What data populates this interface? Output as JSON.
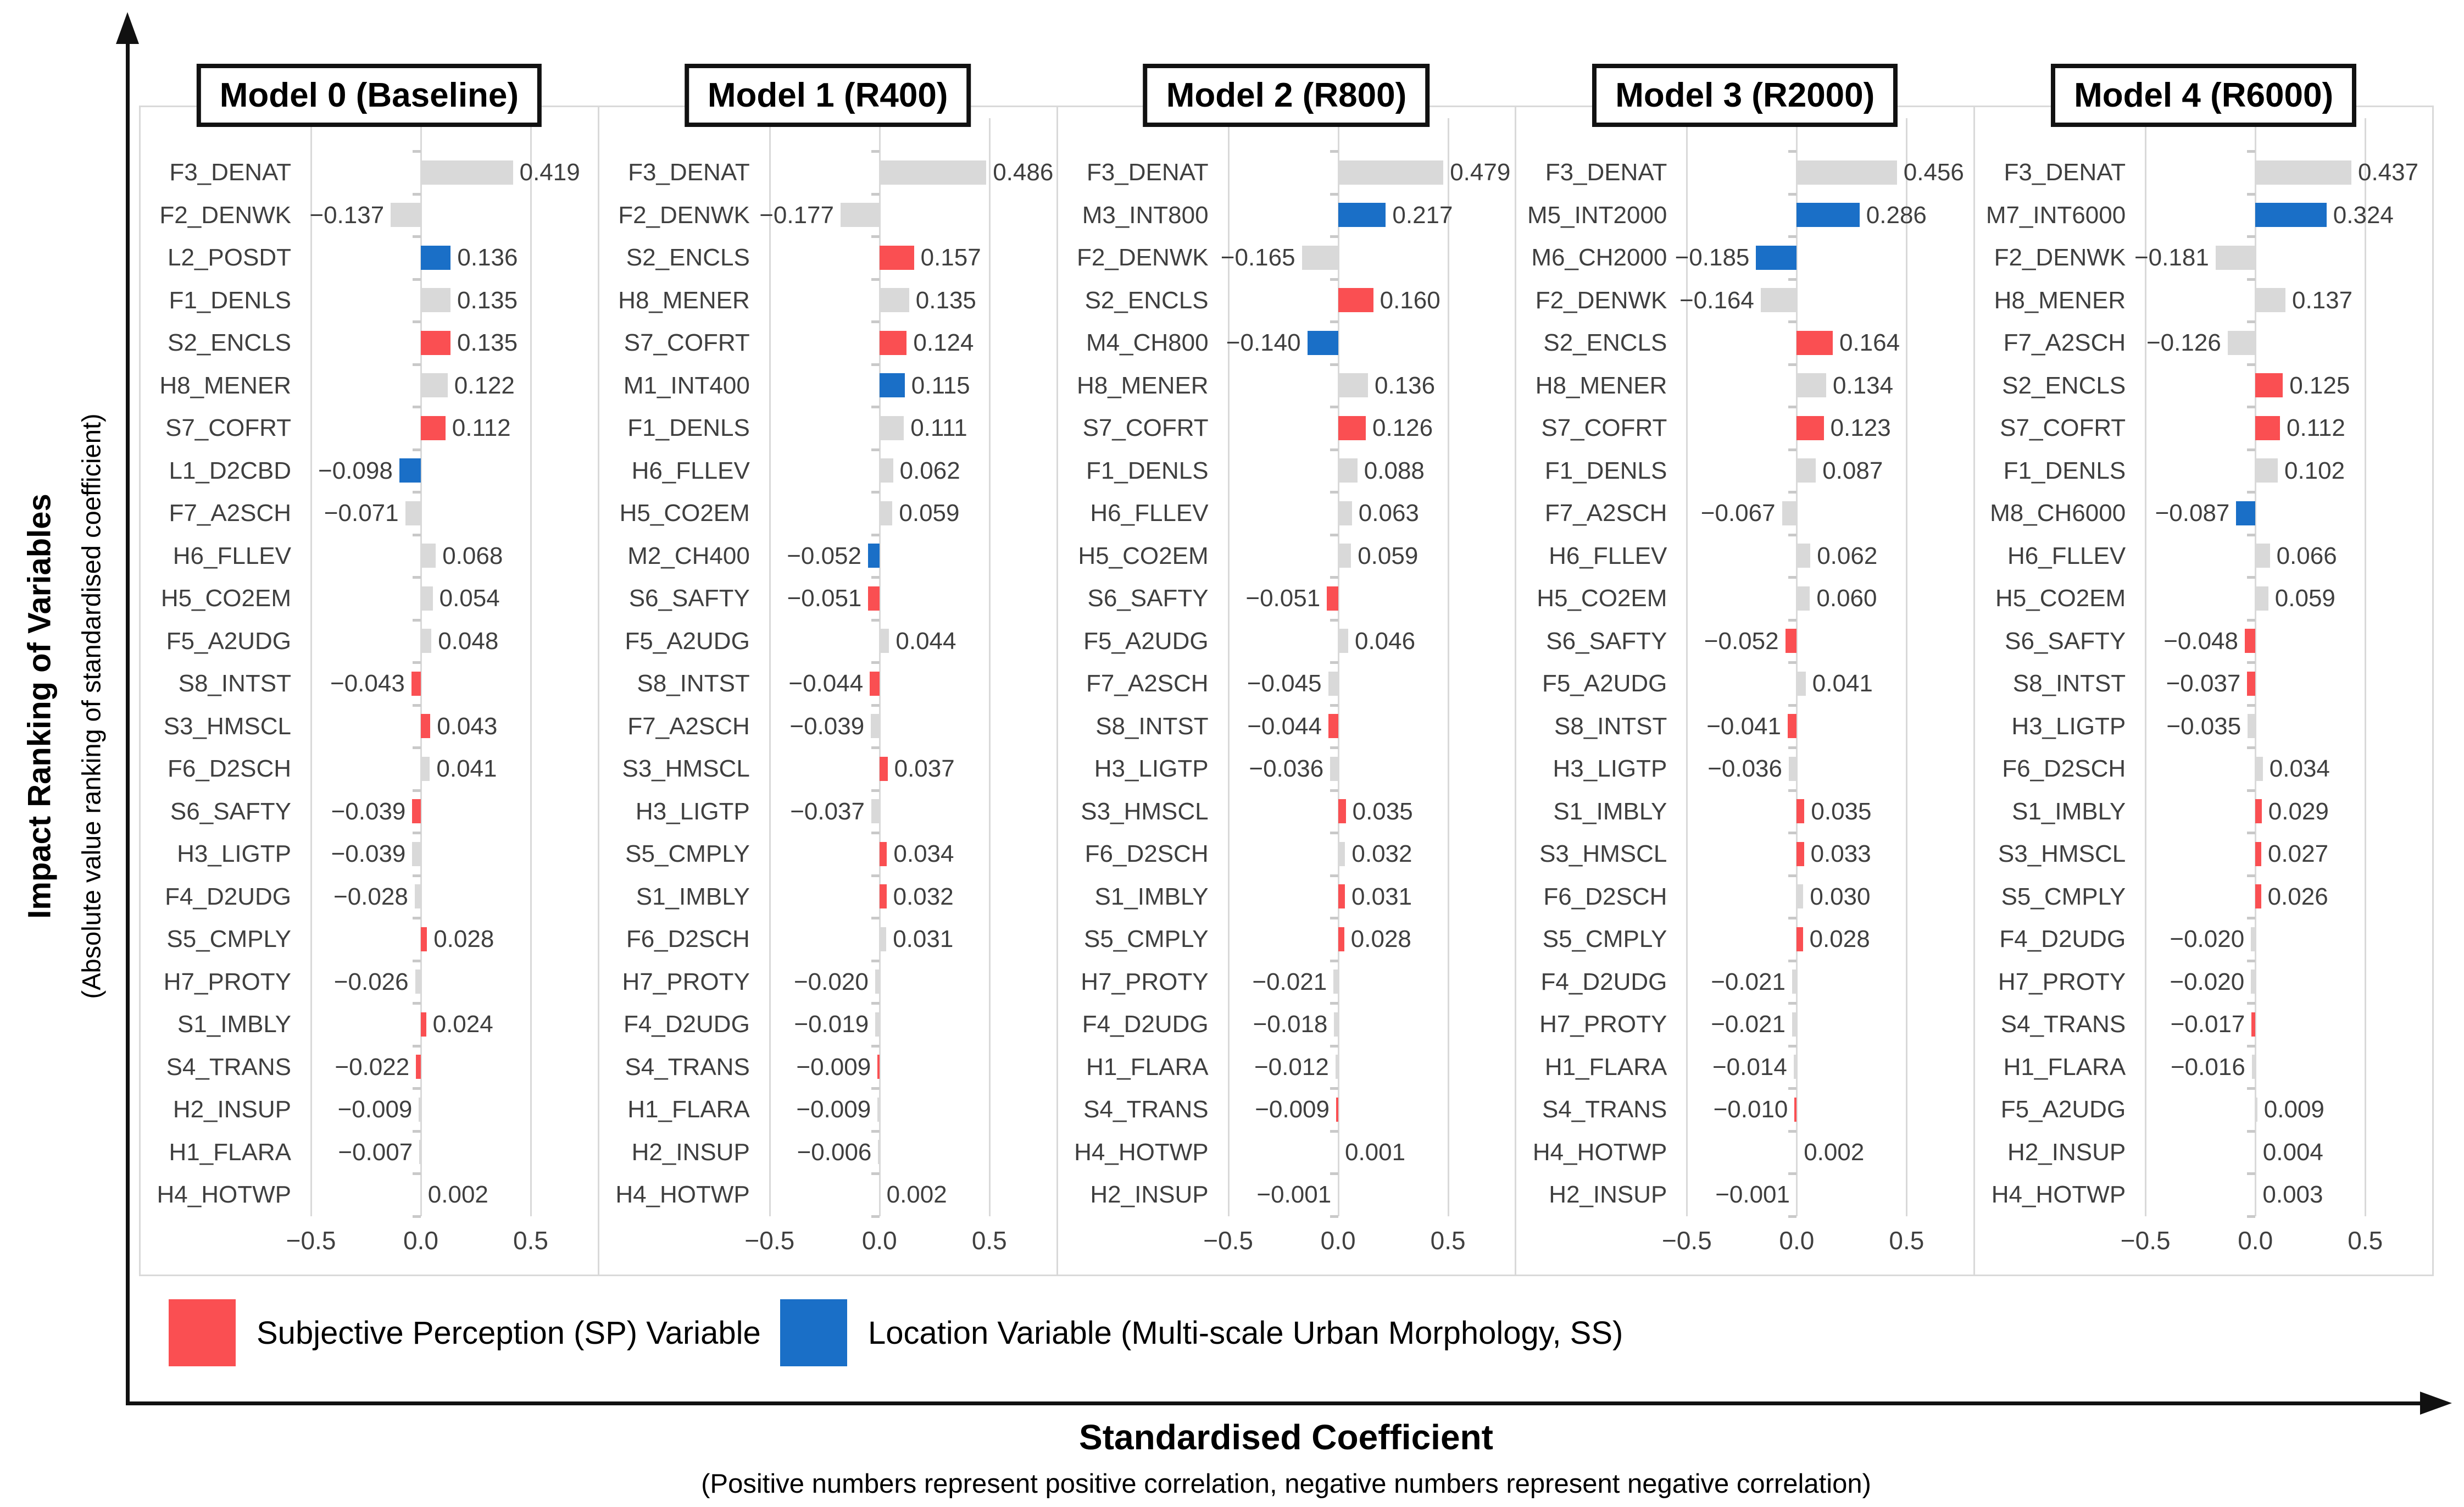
{
  "y_axis": {
    "title": "Impact Ranking of Variables",
    "subtitle": "(Absolute value ranking of standardised coefficient)"
  },
  "x_axis": {
    "title": "Standardised Coefficient",
    "subtitle": "(Positive numbers represent positive correlation, negative numbers represent negative correlation)",
    "tick_labels": [
      "−0.5",
      "0.0",
      "0.5"
    ]
  },
  "legend": [
    {
      "label": "Subjective Perception (SP) Variable",
      "type": "sp"
    },
    {
      "label": "Location Variable (Multi-scale Urban Morphology, SS)",
      "type": "loc"
    }
  ],
  "colors": {
    "sp": "#FA4F52",
    "loc": "#1A6FC7",
    "neutral": "#D9D9D9",
    "axis_text": "#3f3f3f",
    "grid": "#d9d9d9"
  },
  "chart_data": {
    "type": "bar",
    "orientation": "horizontal",
    "xlim": [
      -0.75,
      0.8
    ],
    "gridlines": [
      -0.5,
      0,
      0.5
    ],
    "value_format": "3dp",
    "panels": [
      {
        "title": "Model 0 (Baseline)",
        "bars": [
          {
            "var": "F3_DENAT",
            "value": 0.419,
            "type": "neutral"
          },
          {
            "var": "F2_DENWK",
            "value": -0.137,
            "type": "neutral"
          },
          {
            "var": "L2_POSDT",
            "value": 0.136,
            "type": "loc"
          },
          {
            "var": "F1_DENLS",
            "value": 0.135,
            "type": "neutral"
          },
          {
            "var": "S2_ENCLS",
            "value": 0.135,
            "type": "sp"
          },
          {
            "var": "H8_MENER",
            "value": 0.122,
            "type": "neutral"
          },
          {
            "var": "S7_COFRT",
            "value": 0.112,
            "type": "sp"
          },
          {
            "var": "L1_D2CBD",
            "value": -0.098,
            "type": "loc"
          },
          {
            "var": "F7_A2SCH",
            "value": -0.071,
            "type": "neutral"
          },
          {
            "var": "H6_FLLEV",
            "value": 0.068,
            "type": "neutral"
          },
          {
            "var": "H5_CO2EM",
            "value": 0.054,
            "type": "neutral"
          },
          {
            "var": "F5_A2UDG",
            "value": 0.048,
            "type": "neutral"
          },
          {
            "var": "S8_INTST",
            "value": -0.043,
            "type": "sp"
          },
          {
            "var": "S3_HMSCL",
            "value": 0.043,
            "type": "sp"
          },
          {
            "var": "F6_D2SCH",
            "value": 0.041,
            "type": "neutral"
          },
          {
            "var": "S6_SAFTY",
            "value": -0.039,
            "type": "sp"
          },
          {
            "var": "H3_LIGTP",
            "value": -0.039,
            "type": "neutral"
          },
          {
            "var": "F4_D2UDG",
            "value": -0.028,
            "type": "neutral"
          },
          {
            "var": "S5_CMPLY",
            "value": 0.028,
            "type": "sp"
          },
          {
            "var": "H7_PROTY",
            "value": -0.026,
            "type": "neutral"
          },
          {
            "var": "S1_IMBLY",
            "value": 0.024,
            "type": "sp"
          },
          {
            "var": "S4_TRANS",
            "value": -0.022,
            "type": "sp"
          },
          {
            "var": "H2_INSUP",
            "value": -0.009,
            "type": "neutral"
          },
          {
            "var": "H1_FLARA",
            "value": -0.007,
            "type": "neutral"
          },
          {
            "var": "H4_HOTWP",
            "value": 0.002,
            "type": "neutral"
          }
        ]
      },
      {
        "title": "Model 1 (R400)",
        "bars": [
          {
            "var": "F3_DENAT",
            "value": 0.486,
            "type": "neutral"
          },
          {
            "var": "F2_DENWK",
            "value": -0.177,
            "type": "neutral"
          },
          {
            "var": "S2_ENCLS",
            "value": 0.157,
            "type": "sp"
          },
          {
            "var": "H8_MENER",
            "value": 0.135,
            "type": "neutral"
          },
          {
            "var": "S7_COFRT",
            "value": 0.124,
            "type": "sp"
          },
          {
            "var": "M1_INT400",
            "value": 0.115,
            "type": "loc"
          },
          {
            "var": "F1_DENLS",
            "value": 0.111,
            "type": "neutral"
          },
          {
            "var": "H6_FLLEV",
            "value": 0.062,
            "type": "neutral"
          },
          {
            "var": "H5_CO2EM",
            "value": 0.059,
            "type": "neutral"
          },
          {
            "var": "M2_CH400",
            "value": -0.052,
            "type": "loc"
          },
          {
            "var": "S6_SAFTY",
            "value": -0.051,
            "type": "sp"
          },
          {
            "var": "F5_A2UDG",
            "value": 0.044,
            "type": "neutral"
          },
          {
            "var": "S8_INTST",
            "value": -0.044,
            "type": "sp"
          },
          {
            "var": "F7_A2SCH",
            "value": -0.039,
            "type": "neutral"
          },
          {
            "var": "S3_HMSCL",
            "value": 0.037,
            "type": "sp"
          },
          {
            "var": "H3_LIGTP",
            "value": -0.037,
            "type": "neutral"
          },
          {
            "var": "S5_CMPLY",
            "value": 0.034,
            "type": "sp"
          },
          {
            "var": "S1_IMBLY",
            "value": 0.032,
            "type": "sp"
          },
          {
            "var": "F6_D2SCH",
            "value": 0.031,
            "type": "neutral"
          },
          {
            "var": "H7_PROTY",
            "value": -0.02,
            "type": "neutral"
          },
          {
            "var": "F4_D2UDG",
            "value": -0.019,
            "type": "neutral"
          },
          {
            "var": "S4_TRANS",
            "value": -0.009,
            "type": "sp"
          },
          {
            "var": "H1_FLARA",
            "value": -0.009,
            "type": "neutral"
          },
          {
            "var": "H2_INSUP",
            "value": -0.006,
            "type": "neutral"
          },
          {
            "var": "H4_HOTWP",
            "value": 0.002,
            "type": "neutral"
          }
        ]
      },
      {
        "title": "Model 2 (R800)",
        "bars": [
          {
            "var": "F3_DENAT",
            "value": 0.479,
            "type": "neutral"
          },
          {
            "var": "M3_INT800",
            "value": 0.217,
            "type": "loc"
          },
          {
            "var": "F2_DENWK",
            "value": -0.165,
            "type": "neutral"
          },
          {
            "var": "S2_ENCLS",
            "value": 0.16,
            "type": "sp"
          },
          {
            "var": "M4_CH800",
            "value": -0.14,
            "type": "loc"
          },
          {
            "var": "H8_MENER",
            "value": 0.136,
            "type": "neutral"
          },
          {
            "var": "S7_COFRT",
            "value": 0.126,
            "type": "sp"
          },
          {
            "var": "F1_DENLS",
            "value": 0.088,
            "type": "neutral"
          },
          {
            "var": "H6_FLLEV",
            "value": 0.063,
            "type": "neutral"
          },
          {
            "var": "H5_CO2EM",
            "value": 0.059,
            "type": "neutral"
          },
          {
            "var": "S6_SAFTY",
            "value": -0.051,
            "type": "sp"
          },
          {
            "var": "F5_A2UDG",
            "value": 0.046,
            "type": "neutral"
          },
          {
            "var": "F7_A2SCH",
            "value": -0.045,
            "type": "neutral"
          },
          {
            "var": "S8_INTST",
            "value": -0.044,
            "type": "sp"
          },
          {
            "var": "H3_LIGTP",
            "value": -0.036,
            "type": "neutral"
          },
          {
            "var": "S3_HMSCL",
            "value": 0.035,
            "type": "sp"
          },
          {
            "var": "F6_D2SCH",
            "value": 0.032,
            "type": "neutral"
          },
          {
            "var": "S1_IMBLY",
            "value": 0.031,
            "type": "sp"
          },
          {
            "var": "S5_CMPLY",
            "value": 0.028,
            "type": "sp"
          },
          {
            "var": "H7_PROTY",
            "value": -0.021,
            "type": "neutral"
          },
          {
            "var": "F4_D2UDG",
            "value": -0.018,
            "type": "neutral"
          },
          {
            "var": "H1_FLARA",
            "value": -0.012,
            "type": "neutral"
          },
          {
            "var": "S4_TRANS",
            "value": -0.009,
            "type": "sp"
          },
          {
            "var": "H4_HOTWP",
            "value": 0.001,
            "type": "neutral"
          },
          {
            "var": "H2_INSUP",
            "value": -0.001,
            "type": "neutral"
          }
        ]
      },
      {
        "title": "Model 3 (R2000)",
        "bars": [
          {
            "var": "F3_DENAT",
            "value": 0.456,
            "type": "neutral"
          },
          {
            "var": "M5_INT2000",
            "value": 0.286,
            "type": "loc"
          },
          {
            "var": "M6_CH2000",
            "value": -0.185,
            "type": "loc"
          },
          {
            "var": "F2_DENWK",
            "value": -0.164,
            "type": "neutral"
          },
          {
            "var": "S2_ENCLS",
            "value": 0.164,
            "type": "sp"
          },
          {
            "var": "H8_MENER",
            "value": 0.134,
            "type": "neutral"
          },
          {
            "var": "S7_COFRT",
            "value": 0.123,
            "type": "sp"
          },
          {
            "var": "F1_DENLS",
            "value": 0.087,
            "type": "neutral"
          },
          {
            "var": "F7_A2SCH",
            "value": -0.067,
            "type": "neutral"
          },
          {
            "var": "H6_FLLEV",
            "value": 0.062,
            "type": "neutral"
          },
          {
            "var": "H5_CO2EM",
            "value": 0.06,
            "type": "neutral"
          },
          {
            "var": "S6_SAFTY",
            "value": -0.052,
            "type": "sp"
          },
          {
            "var": "F5_A2UDG",
            "value": 0.041,
            "type": "neutral"
          },
          {
            "var": "S8_INTST",
            "value": -0.041,
            "type": "sp"
          },
          {
            "var": "H3_LIGTP",
            "value": -0.036,
            "type": "neutral"
          },
          {
            "var": "S1_IMBLY",
            "value": 0.035,
            "type": "sp"
          },
          {
            "var": "S3_HMSCL",
            "value": 0.033,
            "type": "sp"
          },
          {
            "var": "F6_D2SCH",
            "value": 0.03,
            "type": "neutral"
          },
          {
            "var": "S5_CMPLY",
            "value": 0.028,
            "type": "sp"
          },
          {
            "var": "F4_D2UDG",
            "value": -0.021,
            "type": "neutral"
          },
          {
            "var": "H7_PROTY",
            "value": -0.021,
            "type": "neutral"
          },
          {
            "var": "H1_FLARA",
            "value": -0.014,
            "type": "neutral"
          },
          {
            "var": "S4_TRANS",
            "value": -0.01,
            "type": "sp"
          },
          {
            "var": "H4_HOTWP",
            "value": 0.002,
            "type": "neutral"
          },
          {
            "var": "H2_INSUP",
            "value": -0.001,
            "type": "neutral"
          }
        ]
      },
      {
        "title": "Model 4 (R6000)",
        "bars": [
          {
            "var": "F3_DENAT",
            "value": 0.437,
            "type": "neutral"
          },
          {
            "var": "M7_INT6000",
            "value": 0.324,
            "type": "loc"
          },
          {
            "var": "F2_DENWK",
            "value": -0.181,
            "type": "neutral"
          },
          {
            "var": "H8_MENER",
            "value": 0.137,
            "type": "neutral"
          },
          {
            "var": "F7_A2SCH",
            "value": -0.126,
            "type": "neutral"
          },
          {
            "var": "S2_ENCLS",
            "value": 0.125,
            "type": "sp"
          },
          {
            "var": "S7_COFRT",
            "value": 0.112,
            "type": "sp"
          },
          {
            "var": "F1_DENLS",
            "value": 0.102,
            "type": "neutral"
          },
          {
            "var": "M8_CH6000",
            "value": -0.087,
            "type": "loc"
          },
          {
            "var": "H6_FLLEV",
            "value": 0.066,
            "type": "neutral"
          },
          {
            "var": "H5_CO2EM",
            "value": 0.059,
            "type": "neutral"
          },
          {
            "var": "S6_SAFTY",
            "value": -0.048,
            "type": "sp"
          },
          {
            "var": "S8_INTST",
            "value": -0.037,
            "type": "sp"
          },
          {
            "var": "H3_LIGTP",
            "value": -0.035,
            "type": "neutral"
          },
          {
            "var": "F6_D2SCH",
            "value": 0.034,
            "type": "neutral"
          },
          {
            "var": "S1_IMBLY",
            "value": 0.029,
            "type": "sp"
          },
          {
            "var": "S3_HMSCL",
            "value": 0.027,
            "type": "sp"
          },
          {
            "var": "S5_CMPLY",
            "value": 0.026,
            "type": "sp"
          },
          {
            "var": "F4_D2UDG",
            "value": -0.02,
            "type": "neutral"
          },
          {
            "var": "H7_PROTY",
            "value": -0.02,
            "type": "neutral"
          },
          {
            "var": "S4_TRANS",
            "value": -0.017,
            "type": "sp"
          },
          {
            "var": "H1_FLARA",
            "value": -0.016,
            "type": "neutral"
          },
          {
            "var": "F5_A2UDG",
            "value": 0.009,
            "type": "neutral"
          },
          {
            "var": "H2_INSUP",
            "value": 0.004,
            "type": "neutral"
          },
          {
            "var": "H4_HOTWP",
            "value": 0.003,
            "type": "neutral"
          }
        ]
      }
    ]
  }
}
